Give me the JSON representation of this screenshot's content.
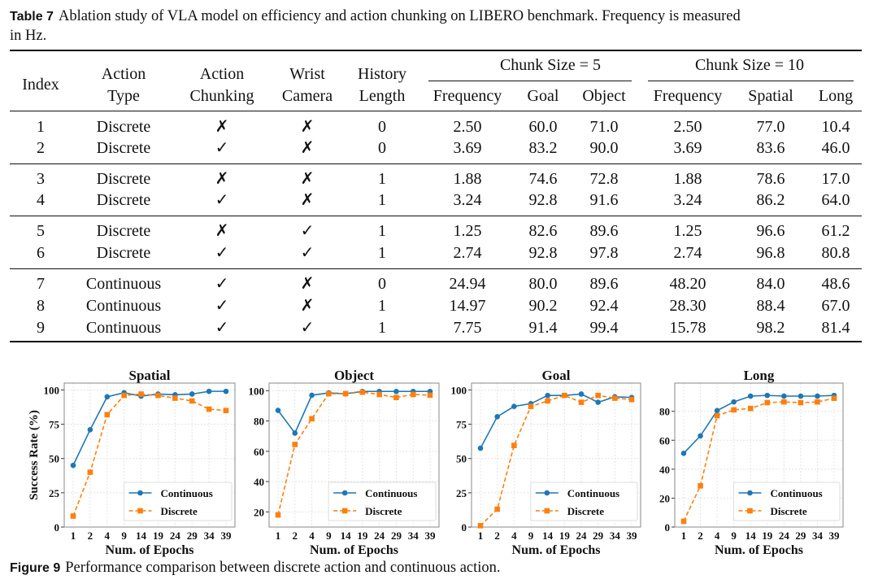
{
  "table_caption": {
    "label": "Table 7",
    "text": "Ablation study of VLA model on efficiency and action chunking on LIBERO benchmark. Frequency is measured",
    "text2": "in Hz."
  },
  "table": {
    "group_headers": [
      "Chunk Size = 5",
      "Chunk Size = 10"
    ],
    "headers": [
      [
        "Index"
      ],
      [
        "Action",
        "Type"
      ],
      [
        "Action",
        "Chunking"
      ],
      [
        "Wrist",
        "Camera"
      ],
      [
        "History",
        "Length"
      ],
      [
        "Frequency"
      ],
      [
        "Goal"
      ],
      [
        "Object"
      ],
      [
        "Frequency"
      ],
      [
        "Spatial"
      ],
      [
        "Long"
      ]
    ],
    "rows": [
      [
        "1",
        "Discrete",
        "✗",
        "✗",
        "0",
        "2.50",
        "60.0",
        "71.0",
        "2.50",
        "77.0",
        "10.4"
      ],
      [
        "2",
        "Discrete",
        "✓",
        "✗",
        "0",
        "3.69",
        "83.2",
        "90.0",
        "3.69",
        "83.6",
        "46.0"
      ],
      [
        "3",
        "Discrete",
        "✗",
        "✗",
        "1",
        "1.88",
        "74.6",
        "72.8",
        "1.88",
        "78.6",
        "17.0"
      ],
      [
        "4",
        "Discrete",
        "✓",
        "✗",
        "1",
        "3.24",
        "92.8",
        "91.6",
        "3.24",
        "86.2",
        "64.0"
      ],
      [
        "5",
        "Discrete",
        "✗",
        "✓",
        "1",
        "1.25",
        "82.6",
        "89.6",
        "1.25",
        "96.6",
        "61.2"
      ],
      [
        "6",
        "Discrete",
        "✓",
        "✓",
        "1",
        "2.74",
        "92.8",
        "97.8",
        "2.74",
        "96.8",
        "80.8"
      ],
      [
        "7",
        "Continuous",
        "✓",
        "✗",
        "0",
        "24.94",
        "80.0",
        "89.6",
        "48.20",
        "84.0",
        "48.6"
      ],
      [
        "8",
        "Continuous",
        "✓",
        "✗",
        "1",
        "14.97",
        "90.2",
        "92.4",
        "28.30",
        "88.4",
        "67.0"
      ],
      [
        "9",
        "Continuous",
        "✓",
        "✓",
        "1",
        "7.75",
        "91.4",
        "99.4",
        "15.78",
        "98.2",
        "81.4"
      ]
    ]
  },
  "figure_caption": {
    "label": "Figure 9",
    "text": "Performance comparison between discrete action and continuous action."
  },
  "colors": {
    "continuous": "#1f77b4",
    "discrete": "#ff7f0e"
  },
  "chart_data": [
    {
      "type": "line",
      "title": "Spatial",
      "xlabel": "Num. of Epochs",
      "ylabel": "Success Rate (%)",
      "categories": [
        "1",
        "2",
        "4",
        "9",
        "14",
        "19",
        "24",
        "29",
        "34",
        "39"
      ],
      "ylim": [
        0,
        105
      ],
      "yticks": [
        0,
        25,
        50,
        75,
        100
      ],
      "legend": "lower-right",
      "grid": true,
      "series": [
        {
          "name": "Continuous",
          "values": [
            45,
            71,
            95,
            98,
            95.5,
            97,
            96.5,
            97,
            99,
            99
          ]
        },
        {
          "name": "Discrete",
          "values": [
            8,
            40,
            82,
            96,
            97,
            96,
            94,
            92,
            86,
            85
          ]
        }
      ]
    },
    {
      "type": "line",
      "title": "Object",
      "xlabel": "Num. of Epochs",
      "ylabel": "",
      "categories": [
        "1",
        "2",
        "4",
        "9",
        "14",
        "19",
        "24",
        "29",
        "34",
        "39"
      ],
      "ylim": [
        10,
        105
      ],
      "yticks": [
        20,
        40,
        60,
        80,
        100
      ],
      "legend": "lower-right",
      "grid": true,
      "series": [
        {
          "name": "Continuous",
          "values": [
            87,
            72,
            97,
            98.5,
            98,
            99.5,
            99.5,
            99.5,
            99.5,
            99.5
          ]
        },
        {
          "name": "Discrete",
          "values": [
            18,
            64.5,
            81.5,
            98,
            98,
            99,
            97.5,
            95.5,
            97.5,
            97
          ]
        }
      ]
    },
    {
      "type": "line",
      "title": "Goal",
      "xlabel": "Num. of Epochs",
      "ylabel": "",
      "categories": [
        "1",
        "2",
        "4",
        "9",
        "14",
        "19",
        "24",
        "29",
        "34",
        "39"
      ],
      "ylim": [
        0,
        105
      ],
      "yticks": [
        0,
        25,
        50,
        75,
        100
      ],
      "legend": "lower-right",
      "grid": true,
      "series": [
        {
          "name": "Continuous",
          "values": [
            57.5,
            80.5,
            88,
            90,
            96,
            96,
            97,
            91,
            95,
            94.5
          ]
        },
        {
          "name": "Discrete",
          "values": [
            1,
            13,
            59.5,
            88,
            92,
            96,
            91,
            96,
            94,
            93
          ]
        }
      ]
    },
    {
      "type": "line",
      "title": "Long",
      "xlabel": "Num. of Epochs",
      "ylabel": "",
      "categories": [
        "1",
        "2",
        "4",
        "9",
        "14",
        "19",
        "24",
        "29",
        "34",
        "39"
      ],
      "ylim": [
        0,
        99.5
      ],
      "yticks": [
        0,
        20,
        40,
        60,
        80
      ],
      "legend": "lower-right",
      "grid": true,
      "series": [
        {
          "name": "Continuous",
          "values": [
            51,
            63,
            80.5,
            86.5,
            90.5,
            91,
            90.5,
            90.5,
            90.5,
            91
          ]
        },
        {
          "name": "Discrete",
          "values": [
            4,
            28.5,
            77,
            81,
            82,
            86,
            86.5,
            86,
            86.5,
            89
          ]
        }
      ]
    }
  ]
}
